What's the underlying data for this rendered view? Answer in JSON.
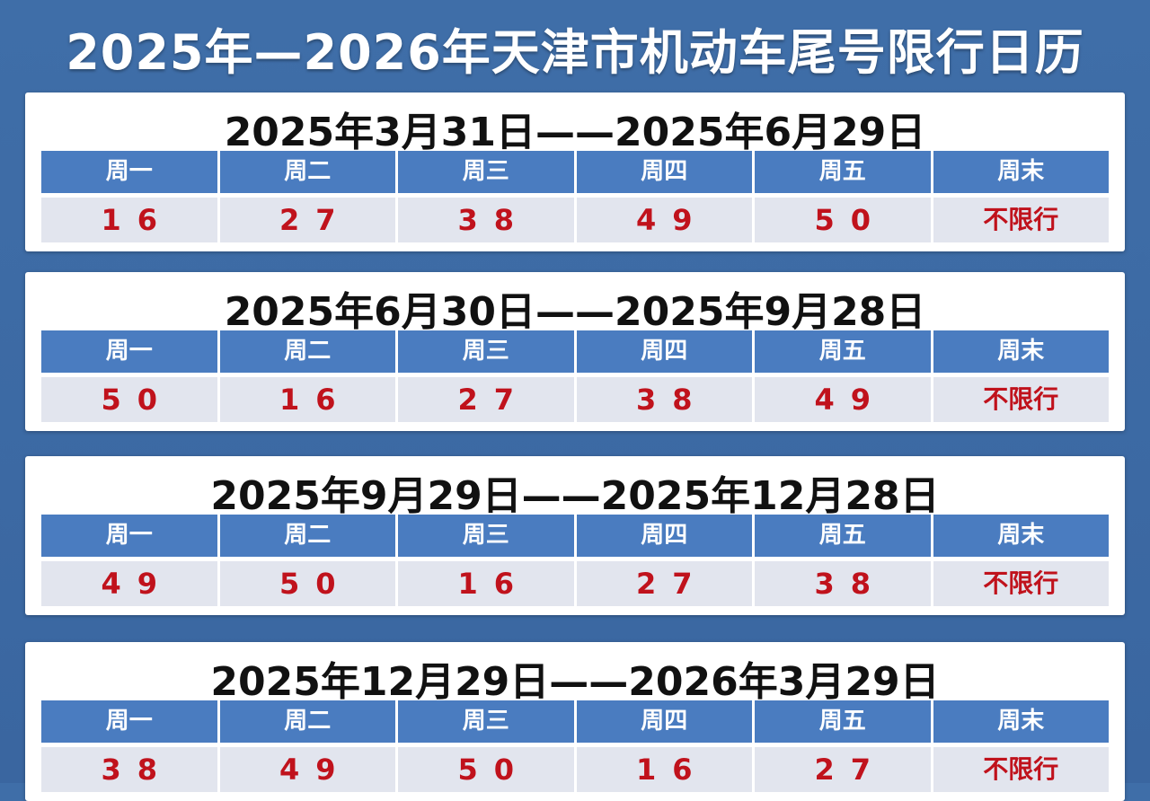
{
  "header": {
    "title": "2025年—2026年天津市机动车尾号限行日历"
  },
  "periods": [
    {
      "title": "2025年3月31日——2025年6月29日",
      "headers": [
        "周一",
        "周二",
        "周三",
        "周四",
        "周五",
        "周末"
      ],
      "values": [
        "16",
        "27",
        "38",
        "49",
        "50",
        "不限行"
      ]
    },
    {
      "title": "2025年6月30日——2025年9月28日",
      "headers": [
        "周一",
        "周二",
        "周三",
        "周四",
        "周五",
        "周末"
      ],
      "values": [
        "50",
        "16",
        "27",
        "38",
        "49",
        "不限行"
      ]
    },
    {
      "title": "2025年9月29日——2025年12月28日",
      "headers": [
        "周一",
        "周二",
        "周三",
        "周四",
        "周五",
        "周末"
      ],
      "values": [
        "49",
        "50",
        "16",
        "27",
        "38",
        "不限行"
      ]
    },
    {
      "title": "2025年12月29日——2026年3月29日",
      "headers": [
        "周一",
        "周二",
        "周三",
        "周四",
        "周五",
        "周末"
      ],
      "values": [
        "38",
        "49",
        "50",
        "16",
        "27",
        "不限行"
      ]
    }
  ]
}
